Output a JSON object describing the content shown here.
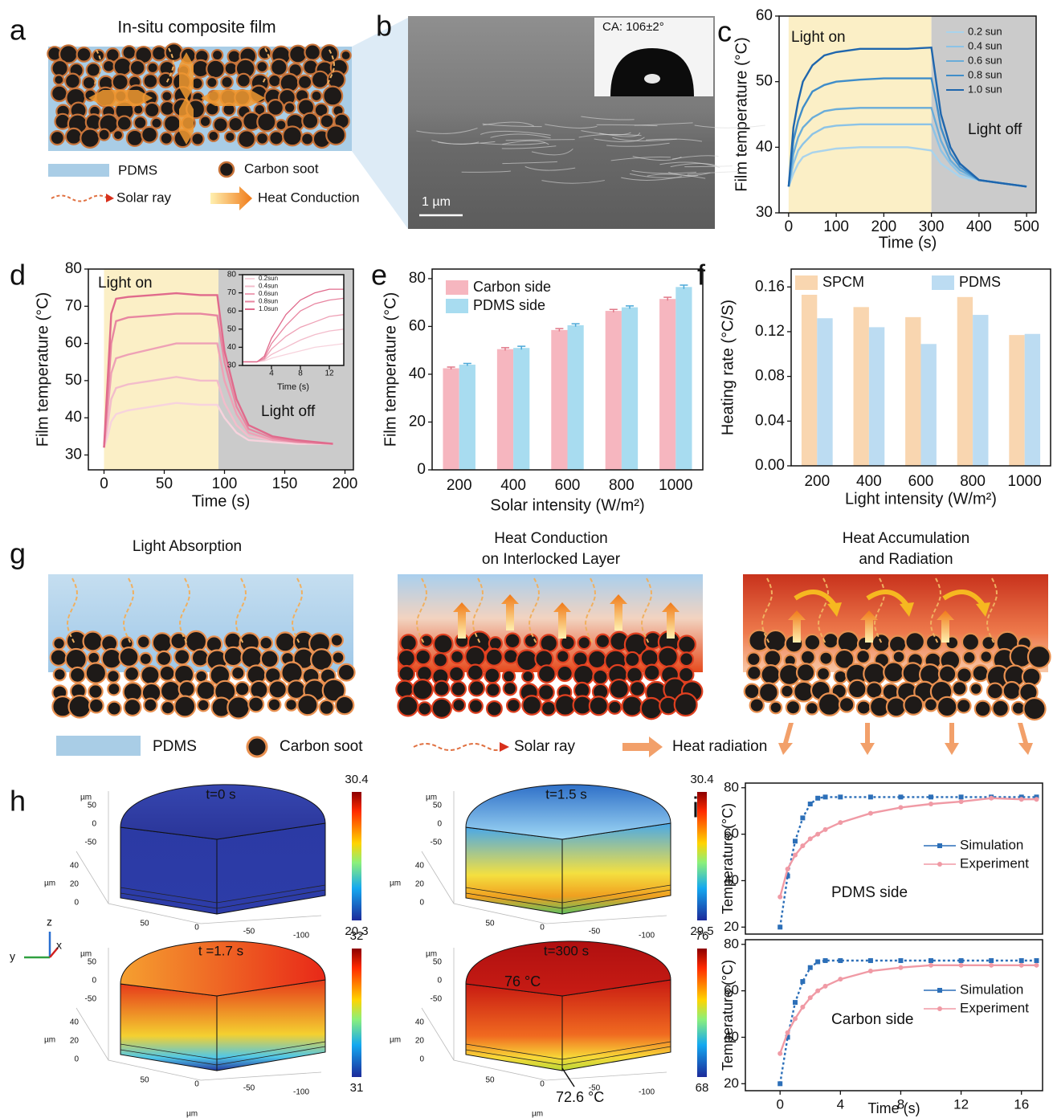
{
  "panels": {
    "a": {
      "label": "a",
      "title": "In-situ composite film",
      "legend": [
        "PDMS",
        "Carbon soot",
        "Solar ray",
        "Heat Conduction"
      ]
    },
    "b": {
      "label": "b",
      "contact_angle": "CA:  106±2°",
      "scale_bar": "1 µm"
    },
    "g": {
      "label": "g",
      "steps": [
        [
          "Light Absorption"
        ],
        [
          "Heat Conduction",
          "on Interlocked Layer"
        ],
        [
          "Heat Accumulation",
          "and Radiation"
        ]
      ],
      "legend": [
        "PDMS",
        "Carbon soot",
        "Solar ray",
        "Heat radiation"
      ]
    },
    "h": {
      "label": "h",
      "frames": [
        {
          "time": "t=0 s",
          "scale_max": 30.4,
          "scale_min": 20.3
        },
        {
          "time": "t=1.5 s",
          "scale_max": 30.4,
          "scale_min": 29.5
        },
        {
          "time": "t =1.7 s",
          "scale_max": 32,
          "scale_min": 31
        },
        {
          "time": "t=300 s",
          "scale_max": 76,
          "scale_min": 68,
          "top": "76 °C",
          "bottom": "72.6 °C"
        }
      ],
      "unit": "µm",
      "y_ticks": [
        "50",
        "0",
        "-50"
      ],
      "z_ticks": [
        "40",
        "20",
        "0"
      ],
      "x_ticks": [
        "50",
        "0",
        "-50",
        "-100"
      ],
      "axes": [
        "z",
        "y",
        "x"
      ]
    }
  },
  "chart_data": [
    {
      "type": "line",
      "panel": "c",
      "x_label": "Time (s)",
      "y_label": "Film temperature (°C)",
      "xlim": [
        -20,
        520
      ],
      "ylim": [
        30,
        60
      ],
      "xticks": [
        0,
        100,
        200,
        300,
        400,
        500
      ],
      "yticks": [
        30,
        40,
        50,
        60
      ],
      "regions": [
        {
          "x": [
            0,
            300
          ],
          "label": "Light on",
          "color": "#fbefc6"
        },
        {
          "x": [
            300,
            520
          ],
          "label": "Light off",
          "color": "#cbcbcb"
        }
      ],
      "legend": "upper right",
      "x": [
        0,
        10,
        20,
        30,
        50,
        75,
        100,
        150,
        200,
        250,
        300,
        310,
        320,
        340,
        360,
        400,
        450,
        500
      ],
      "series": [
        {
          "name": "0.2 sun",
          "color": "#a9d3ec",
          "values": [
            34,
            36,
            37.5,
            38.5,
            39.2,
            39.5,
            39.8,
            40,
            40,
            40,
            39.5,
            38.5,
            37.5,
            36.5,
            35.5,
            35,
            34.5,
            34
          ]
        },
        {
          "name": "0.4 sun",
          "color": "#8cc3e6",
          "values": [
            34,
            37.5,
            39.5,
            40.5,
            42,
            43,
            43.3,
            43.5,
            43.5,
            43.5,
            43.5,
            41.5,
            39.5,
            37.5,
            36,
            35,
            34.5,
            34
          ]
        },
        {
          "name": "0.6 sun",
          "color": "#69acd9",
          "values": [
            34,
            39,
            41.5,
            43,
            44.5,
            45.5,
            45.8,
            46,
            46,
            46,
            46,
            43.5,
            41,
            38,
            36.5,
            35,
            34.5,
            34
          ]
        },
        {
          "name": "0.8 sun",
          "color": "#3f8dc9",
          "values": [
            34,
            41,
            44,
            46,
            48.5,
            49.5,
            50,
            50.3,
            50.5,
            50.5,
            50.5,
            47,
            43,
            39,
            37,
            35,
            34.5,
            34
          ]
        },
        {
          "name": "1.0 sun",
          "color": "#1f66ad",
          "values": [
            34,
            43,
            47,
            50,
            52.5,
            54,
            54.5,
            55,
            55,
            55,
            55.2,
            50,
            45,
            40,
            37.5,
            35,
            34.5,
            34
          ]
        }
      ]
    },
    {
      "type": "line",
      "panel": "d",
      "x_label": "Time (s)",
      "y_label": "Film temperature (°C)",
      "xlim": [
        -13,
        207
      ],
      "ylim": [
        26,
        80
      ],
      "xticks": [
        0,
        50,
        100,
        150,
        200
      ],
      "yticks": [
        30,
        40,
        50,
        60,
        70,
        80
      ],
      "regions": [
        {
          "x": [
            0,
            95
          ],
          "label": "Light on",
          "color": "#fbefc6"
        },
        {
          "x": [
            95,
            207
          ],
          "label": "Light off",
          "color": "#cbcbcb"
        }
      ],
      "x": [
        0,
        3,
        6,
        10,
        20,
        40,
        60,
        80,
        94,
        100,
        110,
        120,
        140,
        160,
        190
      ],
      "series": [
        {
          "name": "0.2 sun",
          "color": "#f7d3dd",
          "values": [
            32,
            35,
            39,
            41,
            42,
            43,
            44,
            43.5,
            43.5,
            40,
            36,
            34,
            33.5,
            33,
            33
          ]
        },
        {
          "name": "0.4 sun",
          "color": "#f3bccb",
          "values": [
            32,
            38,
            45,
            48,
            49,
            50,
            51,
            50,
            50,
            44,
            38,
            35,
            34,
            33.5,
            33
          ]
        },
        {
          "name": "0.6 sun",
          "color": "#eea1b6",
          "values": [
            32,
            42,
            52,
            56,
            57,
            58.5,
            60,
            60,
            60,
            50,
            41,
            36,
            34,
            33.5,
            33
          ]
        },
        {
          "name": "0.8 sun",
          "color": "#e886a1",
          "values": [
            32,
            45,
            60,
            66,
            67,
            67.5,
            68,
            68,
            67.5,
            55,
            43,
            37,
            34.5,
            33.5,
            33
          ]
        },
        {
          "name": "1.0 sun",
          "color": "#e06a8c",
          "values": [
            32,
            50,
            68,
            72,
            72.5,
            73,
            73.5,
            73,
            73,
            58,
            45,
            38,
            35,
            34,
            33
          ]
        }
      ]
    },
    {
      "type": "line",
      "x_label": "Time (s)",
      "xlim": [
        0,
        14
      ],
      "ylim": [
        30,
        80
      ],
      "xticks": [
        4,
        8,
        12
      ],
      "yticks": [
        30,
        40,
        50,
        60,
        70,
        80
      ],
      "legend": "upper left",
      "x": [
        0,
        2,
        3,
        4,
        6,
        8,
        10,
        12,
        14
      ],
      "series": [
        {
          "name": "0.2sun",
          "color": "#f7d3dd",
          "values": [
            32,
            32,
            32.5,
            34,
            36,
            38,
            40,
            41,
            42
          ]
        },
        {
          "name": "0.4sun",
          "color": "#f3bccb",
          "values": [
            32,
            32,
            33,
            36,
            40,
            44,
            47,
            49,
            50
          ]
        },
        {
          "name": "0.6sun",
          "color": "#eea1b6",
          "values": [
            32,
            32,
            33.5,
            39,
            46,
            51,
            54,
            57,
            58
          ]
        },
        {
          "name": "0.8sun",
          "color": "#e886a1",
          "values": [
            32,
            32,
            34,
            42,
            52,
            60,
            64,
            66,
            67
          ]
        },
        {
          "name": "1.0sun",
          "color": "#e06a8c",
          "values": [
            32,
            32,
            35,
            45,
            58,
            66,
            70,
            72,
            72
          ]
        }
      ]
    },
    {
      "type": "bar",
      "panel": "e",
      "x_label": "Solar intensity (W/m²)",
      "y_label": "Film temperature (°C)",
      "ylim": [
        0,
        84
      ],
      "yticks": [
        0,
        20,
        40,
        60,
        80
      ],
      "legend": "upper left",
      "categories": [
        "200",
        "400",
        "600",
        "800",
        "1000"
      ],
      "series": [
        {
          "name": "Carbon side",
          "color": "#f6b6bf",
          "values": [
            42.5,
            50.5,
            58.5,
            66.5,
            71.5
          ],
          "errors": [
            0.5,
            0.6,
            0.6,
            0.6,
            0.7
          ]
        },
        {
          "name": "PDMS side",
          "color": "#a8dcf0",
          "values": [
            44,
            51,
            60.5,
            68,
            76.5
          ],
          "errors": [
            0.5,
            0.7,
            0.6,
            0.6,
            0.8
          ]
        }
      ]
    },
    {
      "type": "bar",
      "panel": "f",
      "x_label": "Light intensity (W/m²)",
      "y_label": "Heating rate (°C/S)",
      "ylim": [
        0,
        0.176
      ],
      "yticks": [
        {
          "value": 0,
          "label": "0.00"
        },
        0.04,
        0.08,
        0.12,
        0.16
      ],
      "legend": "top",
      "categories": [
        "200",
        "400",
        "600",
        "800",
        "1000"
      ],
      "series": [
        {
          "name": "SPCM",
          "color": "#f9d6b0",
          "values": [
            0.153,
            0.142,
            0.133,
            0.151,
            0.117
          ]
        },
        {
          "name": "PDMS",
          "color": "#bcdcf2",
          "values": [
            0.132,
            0.124,
            0.109,
            0.135,
            0.118
          ]
        }
      ]
    },
    {
      "type": "line",
      "panel": "i",
      "y_label": "Temperature (°C)",
      "note": "PDMS side",
      "xlim": [
        -2.3,
        17.4
      ],
      "ylim": [
        17,
        82
      ],
      "yticks": [
        20,
        40,
        60,
        80
      ],
      "legend": "center right",
      "markers": true,
      "x": [
        0,
        0.5,
        1,
        1.5,
        2,
        2.5,
        3,
        4,
        6,
        8,
        10,
        12,
        14,
        16,
        17
      ],
      "series": [
        {
          "name": "Simulation",
          "color": "#2c6fb8",
          "values": [
            20,
            42,
            57,
            67,
            73,
            75.5,
            76,
            76,
            76,
            76,
            76,
            76,
            76,
            76,
            76
          ]
        },
        {
          "name": "Experiment",
          "color": "#f09aa5",
          "values": [
            33,
            45,
            51,
            55,
            58,
            60,
            62,
            65,
            69,
            71.5,
            73,
            74,
            75.5,
            75,
            75
          ]
        }
      ]
    },
    {
      "type": "line",
      "x_label": "Time (s)",
      "y_label": "Temperature (°C)",
      "note": "Carbon side",
      "xlim": [
        -2.3,
        17.4
      ],
      "ylim": [
        17,
        82
      ],
      "xticks": [
        0,
        4,
        8,
        12,
        16
      ],
      "yticks": [
        20,
        40,
        60,
        80
      ],
      "legend": "upper right",
      "markers": true,
      "x": [
        0,
        0.5,
        1,
        1.5,
        2,
        2.5,
        3,
        4,
        6,
        8,
        10,
        12,
        14,
        16,
        17
      ],
      "series": [
        {
          "name": "Simulation",
          "color": "#2c6fb8",
          "values": [
            20,
            40,
            55,
            64,
            70,
            72.5,
            73,
            73,
            73,
            73,
            73,
            73,
            73,
            73,
            73
          ]
        },
        {
          "name": "Experiment",
          "color": "#f09aa5",
          "values": [
            33,
            42,
            48,
            53,
            57,
            60,
            62,
            65,
            68.5,
            70,
            71,
            71,
            71,
            71,
            71
          ]
        }
      ]
    }
  ]
}
